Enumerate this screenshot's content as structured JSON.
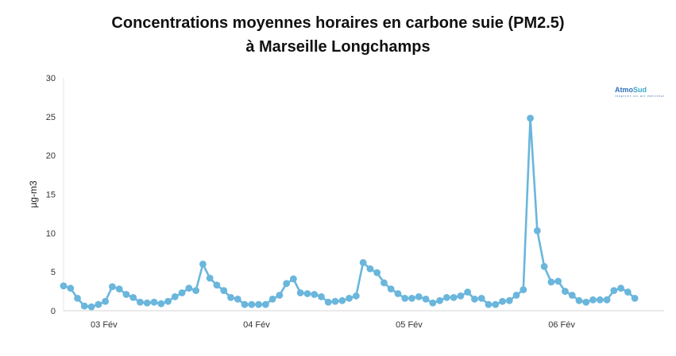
{
  "chart_data": {
    "type": "line",
    "title_lines": [
      "Concentrations moyennes horaires en carbone suie (PM2.5)",
      "à Marseille Longchamps"
    ],
    "ylabel": "µg-m3",
    "xlabel": "",
    "ylim": [
      0,
      30
    ],
    "yticks": [
      0,
      5,
      10,
      15,
      20,
      25,
      30
    ],
    "xticks": [
      {
        "label": "03 Fév",
        "x": 5.8
      },
      {
        "label": "04 Fév",
        "x": 27.7
      },
      {
        "label": "05 Fév",
        "x": 49.6
      },
      {
        "label": "06 Fév",
        "x": 71.5
      }
    ],
    "xlim": [
      0,
      87
    ],
    "grid": false,
    "color": "#6ab6dc",
    "series": [
      {
        "values": [
          3.2,
          2.9,
          1.6,
          0.6,
          0.5,
          0.8,
          1.2,
          3.1,
          2.8,
          2.1,
          1.7,
          1.1,
          1.0,
          1.1,
          0.9,
          1.2,
          1.8,
          2.3,
          2.9,
          2.6,
          6.0,
          4.2,
          3.3,
          2.6,
          1.7,
          1.5,
          0.8,
          0.8,
          0.8,
          0.8,
          1.5,
          2.0,
          3.5,
          4.1,
          2.3,
          2.2,
          2.1,
          1.8,
          1.1,
          1.2,
          1.3,
          1.6,
          1.9,
          6.2,
          5.4,
          4.9,
          3.6,
          2.8,
          2.2,
          1.6,
          1.6,
          1.8,
          1.5,
          1.0,
          1.3,
          1.7,
          1.7,
          1.9,
          2.4,
          1.5,
          1.6,
          0.8,
          0.8,
          1.2,
          1.3,
          2.0,
          2.7,
          24.8,
          10.3,
          5.7,
          3.7,
          3.8,
          2.5,
          2.0,
          1.3,
          1.1,
          1.4,
          1.4,
          1.4,
          2.6,
          2.9,
          2.4,
          1.6
        ]
      }
    ]
  },
  "logo": {
    "part1": "Atmo",
    "part2": "Sud",
    "tagline": "inspirer un air meilleur"
  }
}
